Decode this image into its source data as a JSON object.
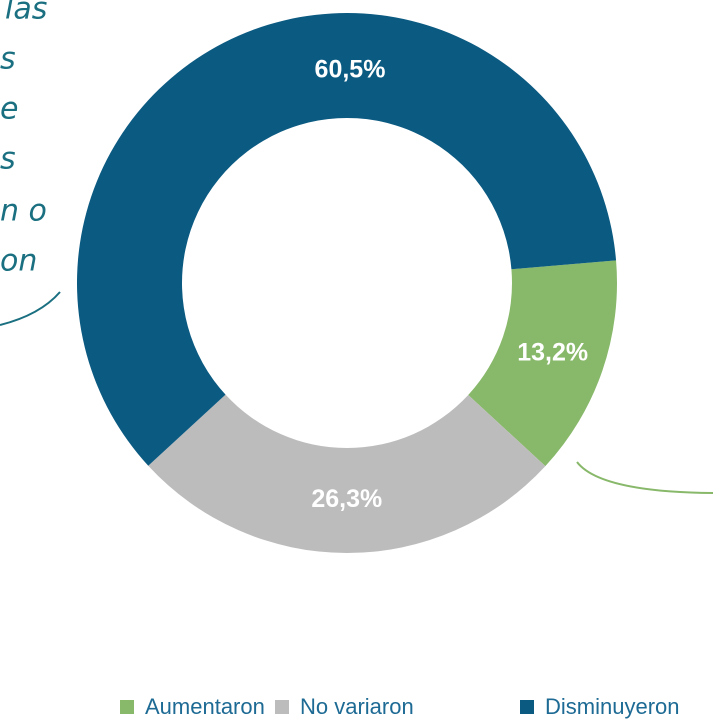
{
  "chart_data": {
    "type": "donut",
    "categories": [
      "Aumentaron",
      "No variaron",
      "Disminuyeron"
    ],
    "values": [
      13.2,
      26.3,
      60.5
    ],
    "value_labels": [
      "13,2%",
      "26,3%",
      "60,5%"
    ],
    "colors": [
      "#88b86a",
      "#bdbcbd",
      "#0b5a82"
    ],
    "annotations": [
      "las",
      "s",
      "e",
      "s",
      "n o",
      "on"
    ]
  }
}
